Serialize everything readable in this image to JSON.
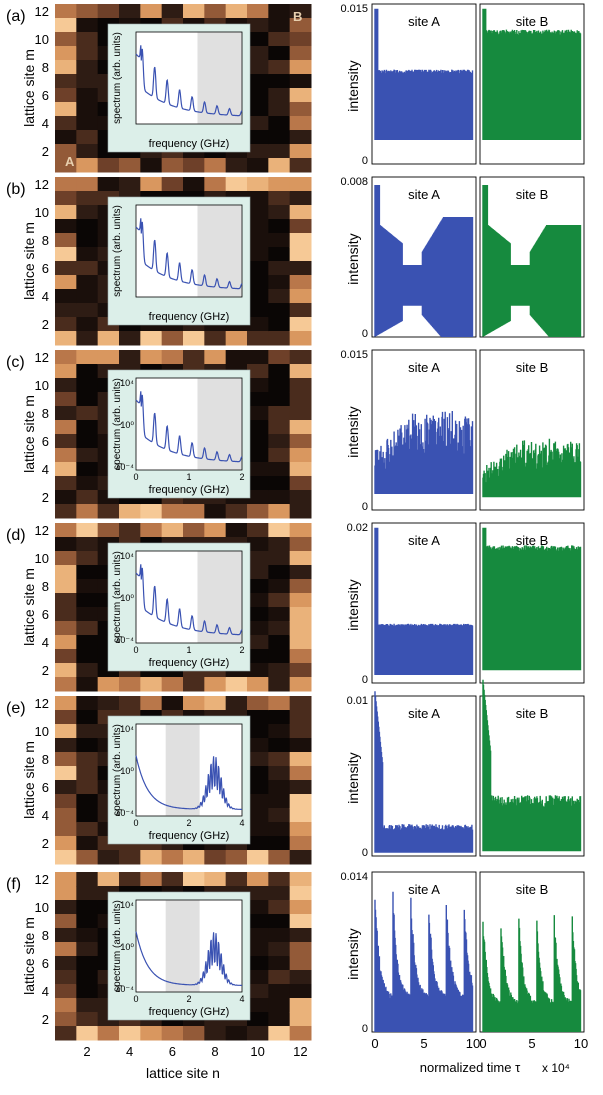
{
  "panels": [
    {
      "letter": "(a)",
      "heatmap": {
        "m_ticks": [
          "12",
          "10",
          "8",
          "6",
          "4",
          "2"
        ],
        "corner_labels": [
          "B",
          "A"
        ]
      },
      "inset": {
        "ylabel": "spectrum (arb. units)",
        "xlabel": "frequency (GHz)",
        "yticks": [],
        "xticks": [],
        "variant": 0,
        "gray_from_frac": 0.58
      },
      "intensity": {
        "ymax_label": "0.015",
        "ymin_label": "0",
        "ylabel": "intensity",
        "sites": [
          {
            "name": "site A",
            "color": "#3a52b2",
            "kind": "flat",
            "lo": 0.15,
            "hi": 0.59
          },
          {
            "name": "site B",
            "color": "#168a3e",
            "kind": "flat",
            "lo": 0.15,
            "hi": 0.84
          }
        ]
      }
    },
    {
      "letter": "(b)",
      "heatmap": {
        "m_ticks": [
          "12",
          "10",
          "8",
          "6",
          "4",
          "2"
        ],
        "corner_labels": []
      },
      "inset": {
        "ylabel": "spectrum (arb. units)",
        "xlabel": "frequency (GHz)",
        "yticks": [],
        "xticks": [],
        "variant": 0,
        "gray_from_frac": 0.58
      },
      "intensity": {
        "ymax_label": "0.008",
        "ymin_label": "0",
        "ylabel": "intensity",
        "sites": [
          {
            "name": "site A",
            "color": "#3a52b2",
            "kind": "pinch",
            "lo": 0.0,
            "hi": 0.75
          },
          {
            "name": "site B",
            "color": "#168a3e",
            "kind": "pinch",
            "lo": 0.0,
            "hi": 0.7
          }
        ]
      }
    },
    {
      "letter": "(c)",
      "heatmap": {
        "m_ticks": [
          "12",
          "10",
          "8",
          "6",
          "4",
          "2"
        ],
        "corner_labels": []
      },
      "inset": {
        "ylabel": "spectrum (arb. units)",
        "xlabel": "frequency (GHz)",
        "yticks": [
          "10⁴",
          "10⁰",
          "10⁻⁴"
        ],
        "xticks": [
          "0",
          "1",
          "2"
        ],
        "variant": 0,
        "gray_from_frac": 0.58
      },
      "intensity": {
        "ymax_label": "0.015",
        "ymin_label": "0",
        "ylabel": "intensity",
        "sites": [
          {
            "name": "site A",
            "color": "#3a52b2",
            "kind": "chaotic",
            "lo": 0.1,
            "hi": 0.62
          },
          {
            "name": "site B",
            "color": "#168a3e",
            "kind": "chaotic",
            "lo": 0.08,
            "hi": 0.45
          }
        ]
      }
    },
    {
      "letter": "(d)",
      "heatmap": {
        "m_ticks": [
          "12",
          "10",
          "8",
          "6",
          "4",
          "2"
        ],
        "corner_labels": []
      },
      "inset": {
        "ylabel": "spectrum (arb. units)",
        "xlabel": "frequency (GHz)",
        "yticks": [
          "10⁴",
          "10⁰",
          "10⁻⁴"
        ],
        "xticks": [
          "0",
          "1",
          "2"
        ],
        "variant": 0,
        "gray_from_frac": 0.58
      },
      "intensity": {
        "ymax_label": "0.02",
        "ymin_label": "0",
        "ylabel": "intensity",
        "sites": [
          {
            "name": "site A",
            "color": "#3a52b2",
            "kind": "flat",
            "lo": 0.05,
            "hi": 0.37
          },
          {
            "name": "site B",
            "color": "#168a3e",
            "kind": "flat",
            "lo": 0.08,
            "hi": 0.86
          }
        ]
      }
    },
    {
      "letter": "(e)",
      "heatmap": {
        "m_ticks": [
          "12",
          "10",
          "8",
          "6",
          "4",
          "2"
        ],
        "corner_labels": []
      },
      "inset": {
        "ylabel": "spectrum (arb. units)",
        "xlabel": "frequency (GHz)",
        "yticks": [
          "10⁴",
          "10⁰",
          "10⁻⁴"
        ],
        "xticks": [
          "0",
          "2",
          "4"
        ],
        "variant": 1,
        "gray_from_frac": 0.28
      },
      "intensity": {
        "ymax_label": "0.01",
        "ymin_label": "0",
        "ylabel": "intensity",
        "sites": [
          {
            "name": "site A",
            "color": "#3a52b2",
            "kind": "decay",
            "lo": 0.02,
            "hi": 0.2
          },
          {
            "name": "site B",
            "color": "#168a3e",
            "kind": "decay",
            "lo": 0.03,
            "hi": 0.38
          }
        ]
      }
    },
    {
      "letter": "(f)",
      "heatmap": {
        "m_ticks": [
          "12",
          "10",
          "8",
          "6",
          "4",
          "2"
        ],
        "corner_labels": []
      },
      "inset": {
        "ylabel": "spectrum (arb. units)",
        "xlabel": "frequency (GHz)",
        "yticks": [
          "10⁴",
          "10⁰",
          "10⁻⁴"
        ],
        "xticks": [
          "0",
          "2",
          "4"
        ],
        "variant": 1,
        "gray_from_frac": 0.28
      },
      "intensity": {
        "ymax_label": "0.014",
        "ymin_label": "0",
        "ylabel": "intensity",
        "sites": [
          {
            "name": "site A",
            "color": "#3a52b2",
            "kind": "spiky",
            "lo": 0.0,
            "hi": 0.9
          },
          {
            "name": "site B",
            "color": "#168a3e",
            "kind": "spiky",
            "lo": 0.0,
            "hi": 0.75
          }
        ]
      }
    }
  ],
  "heatmap_ylabel": "lattice site m",
  "bottom_axis": {
    "n_ticks": [
      "2",
      "4",
      "6",
      "8",
      "10",
      "12"
    ],
    "n_label": "lattice site n",
    "time_ticks_a": [
      "0",
      "5",
      "10"
    ],
    "time_ticks_b": [
      "0",
      "5",
      "10"
    ],
    "time_label": "normalized time τ",
    "time_multiplier": "x 10⁴"
  },
  "colors": {
    "blue": "#3a52b2",
    "green": "#168a3e",
    "inset_bg": "#dcefe9",
    "inset_gray": "#e0e0e0"
  }
}
